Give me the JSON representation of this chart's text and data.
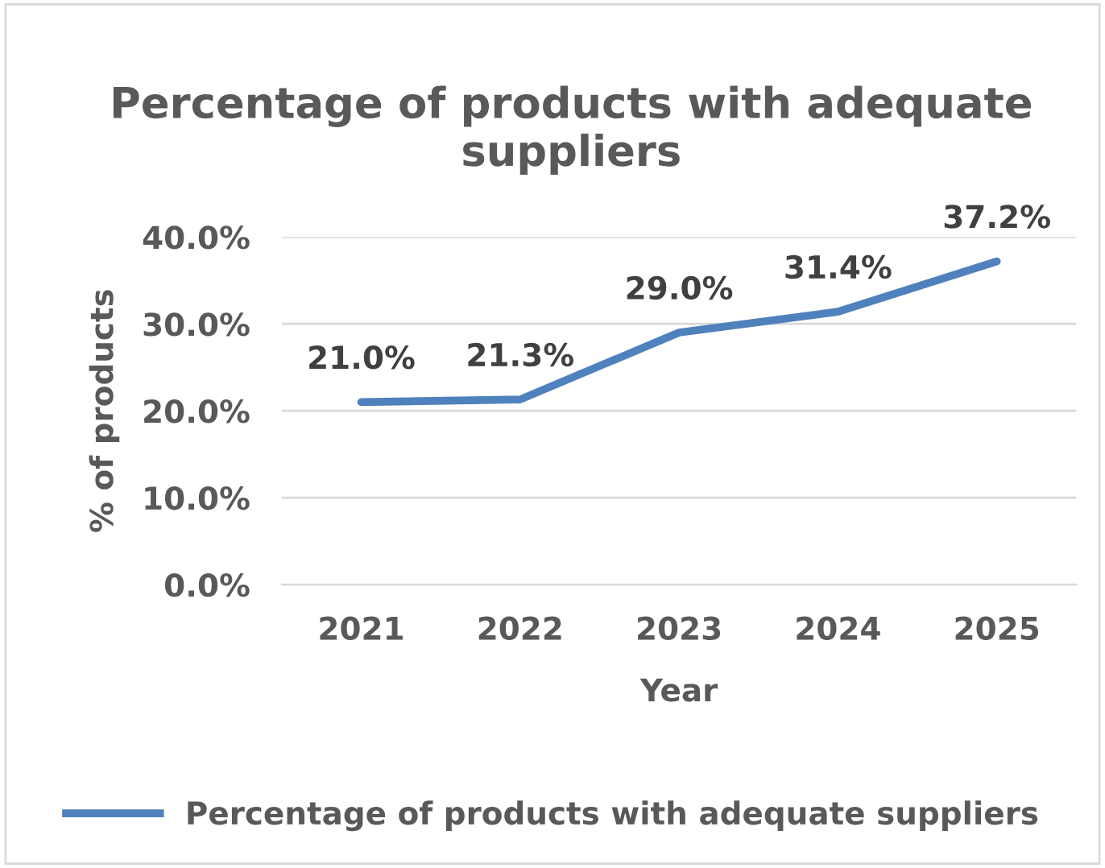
{
  "chart_data": {
    "type": "line",
    "title": "Percentage of products with adequate suppliers",
    "xlabel": "Year",
    "ylabel": "% of products",
    "categories": [
      "2021",
      "2022",
      "2023",
      "2024",
      "2025"
    ],
    "series": [
      {
        "name": "Percentage of products with adequate suppliers",
        "color": "#4f81bd",
        "values": [
          21.0,
          21.3,
          29.0,
          31.4,
          37.2
        ],
        "value_labels": [
          "21.0%",
          "21.3%",
          "29.0%",
          "31.4%",
          "37.2%"
        ]
      }
    ],
    "ylim": [
      0,
      40
    ],
    "yticks": [
      {
        "value": 0,
        "label": "0.0%"
      },
      {
        "value": 10,
        "label": "10.0%"
      },
      {
        "value": 20,
        "label": "20.0%"
      },
      {
        "value": 30,
        "label": "30.0%"
      },
      {
        "value": 40,
        "label": "40.0%"
      }
    ],
    "grid": "y",
    "legend": "bottom",
    "marker": "none",
    "line_style": "solid"
  }
}
